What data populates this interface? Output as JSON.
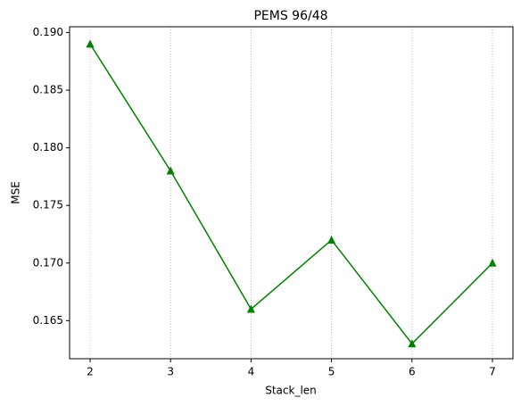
{
  "chart_data": {
    "type": "line",
    "title": "PEMS 96/48",
    "x_label": "Stack_len",
    "y_label": "MSE",
    "x": [
      2,
      3,
      4,
      5,
      6,
      7
    ],
    "series": [
      {
        "color": "#008000",
        "marker": "triangle",
        "values": [
          0.189,
          0.178,
          0.166,
          0.172,
          0.163,
          0.17
        ]
      }
    ],
    "xlim": [
      1.745,
      7.255
    ],
    "ylim": [
      0.1617,
      0.1905
    ],
    "xticks": [
      2,
      3,
      4,
      5,
      6,
      7
    ],
    "yticks": [
      {
        "value": 0.165,
        "label": "0.165"
      },
      {
        "value": 0.17,
        "label": "0.170"
      },
      {
        "value": 0.175,
        "label": "0.175"
      },
      {
        "value": 0.18,
        "label": "0.180"
      },
      {
        "value": 0.185,
        "label": "0.185"
      },
      {
        "value": 0.19,
        "label": "0.190"
      }
    ],
    "grid": "x"
  }
}
